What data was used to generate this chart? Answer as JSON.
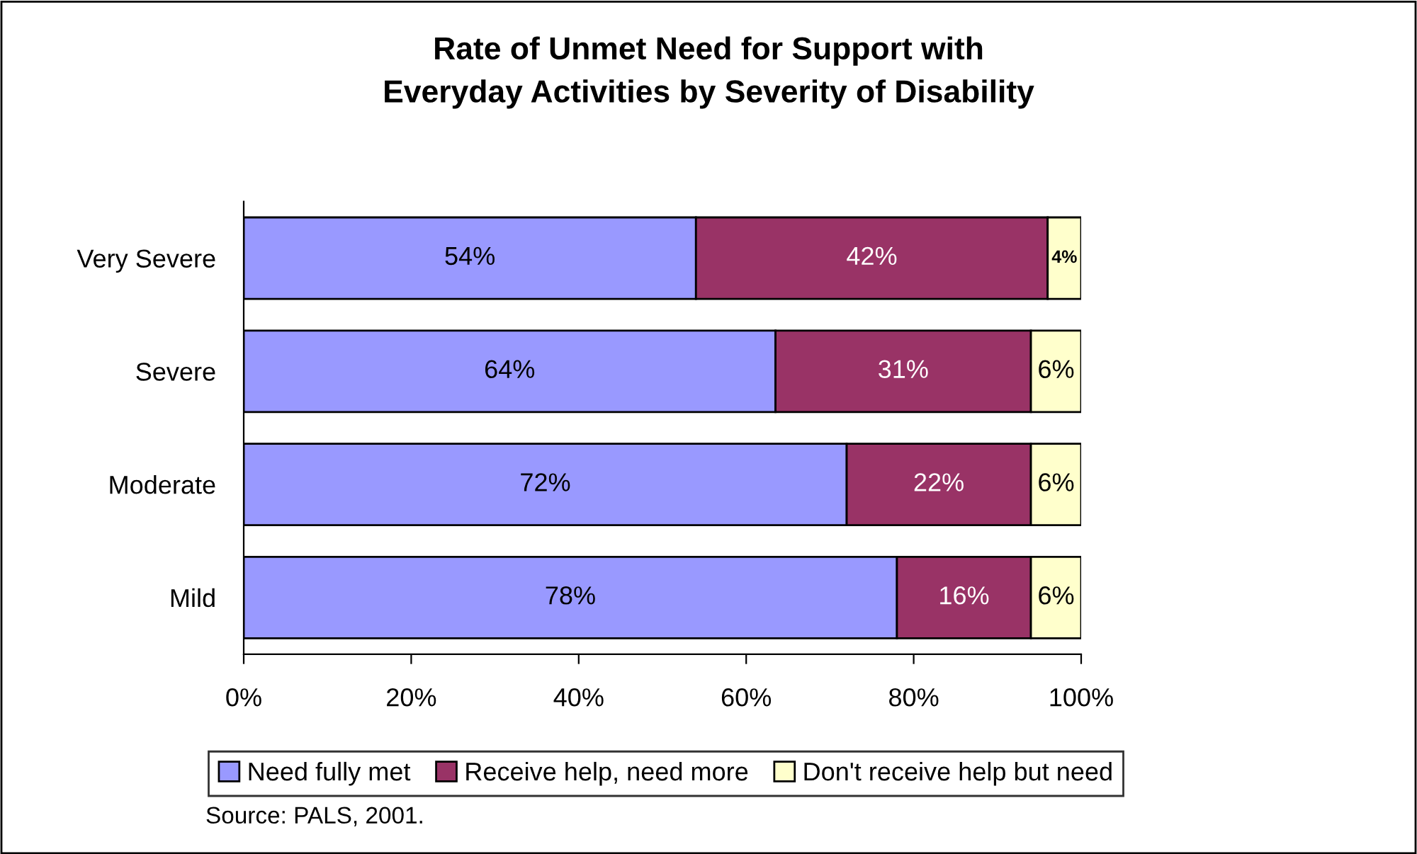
{
  "chart_data": {
    "type": "bar",
    "orientation": "horizontal",
    "stacked": true,
    "title": "Rate of Unmet Need for Support with\nEveryday Activities by Severity of Disability",
    "categories": [
      "Very Severe",
      "Severe",
      "Moderate",
      "Mild"
    ],
    "series": [
      {
        "name": "Need fully met",
        "color": "#9999ff",
        "values": [
          54,
          63.5,
          72,
          78
        ],
        "value_labels": [
          "54%",
          "64%",
          "72%",
          "78%"
        ]
      },
      {
        "name": "Receive help, need more",
        "color": "#993366",
        "values": [
          42,
          30.5,
          22,
          16
        ],
        "value_labels": [
          "42%",
          "31%",
          "22%",
          "16%"
        ]
      },
      {
        "name": "Don't receive help but need",
        "color": "#ffffcc",
        "values": [
          4,
          6,
          6,
          6
        ],
        "value_labels": [
          "4%",
          "6%",
          "6%",
          "6%"
        ]
      }
    ],
    "xlim": [
      0,
      100
    ],
    "xticks": [
      {
        "value": 0,
        "label": "0%"
      },
      {
        "value": 20,
        "label": "20%"
      },
      {
        "value": 40,
        "label": "40%"
      },
      {
        "value": 60,
        "label": "60%"
      },
      {
        "value": 80,
        "label": "80%"
      },
      {
        "value": 100,
        "label": "100%"
      }
    ],
    "grid": false,
    "legend": "bottom",
    "annotations": [
      "Source: PALS, 2001."
    ]
  }
}
